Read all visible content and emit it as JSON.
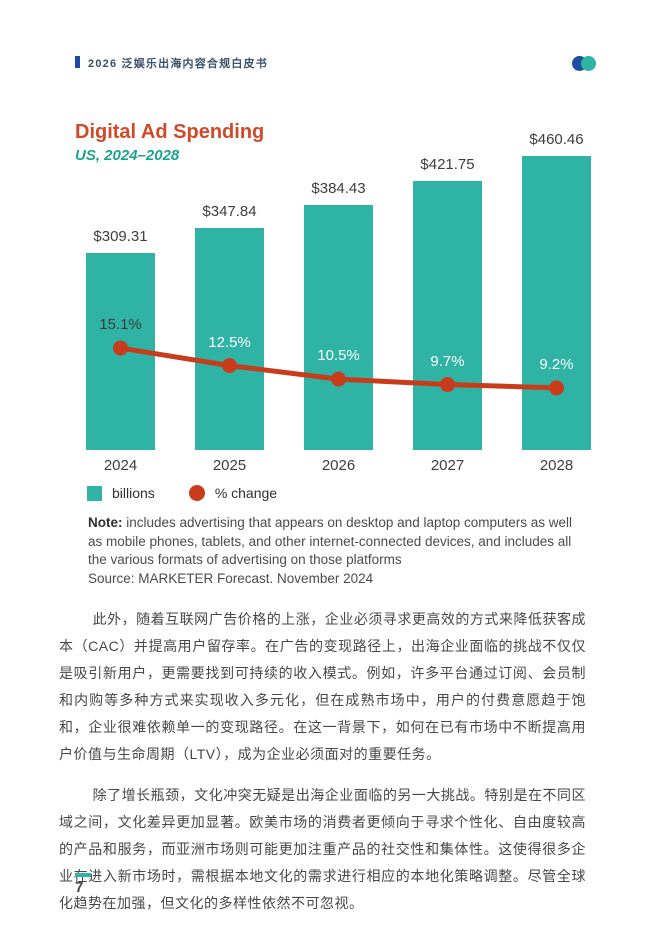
{
  "header": {
    "title": "2026 泛娱乐出海内容合规白皮书",
    "marker_color": "#1d49a7",
    "logo_colors": {
      "left": "#1d4f9e",
      "right": "#2eb3a4"
    }
  },
  "chart_data": {
    "type": "bar",
    "title": "Digital Ad Spending",
    "subtitle": "US, 2024–2028",
    "categories": [
      "2024",
      "2025",
      "2026",
      "2027",
      "2028"
    ],
    "series": [
      {
        "name": "billions",
        "type": "bar",
        "color": "#2eb3a4",
        "values": [
          309.31,
          347.84,
          384.43,
          421.75,
          460.46
        ],
        "labels": [
          "$309.31",
          "$347.84",
          "$384.43",
          "$421.75",
          "$460.46"
        ]
      },
      {
        "name": "% change",
        "type": "line",
        "color": "#c83c1c",
        "values": [
          15.1,
          12.5,
          10.5,
          9.7,
          9.2
        ],
        "labels": [
          "15.1%",
          "12.5%",
          "10.5%",
          "9.7%",
          "9.2%"
        ],
        "label_colors": [
          "#3b3b3b",
          "#ffffff",
          "#ffffff",
          "#ffffff",
          "#ffffff"
        ]
      }
    ],
    "ylim": [
      0,
      475
    ],
    "grid": false,
    "legend_position": "bottom-left"
  },
  "legend": [
    {
      "label": "billions"
    },
    {
      "label": "% change"
    }
  ],
  "note": {
    "label": "Note:",
    "text": " includes advertising that appears on desktop and laptop computers as well as mobile phones, tablets, and other internet-connected devices, and includes all the various formats of advertising on those platforms",
    "source": "Source: MARKETER Forecast. November 2024"
  },
  "body": {
    "paragraphs": [
      "此外，随着互联网广告价格的上涨，企业必须寻求更高效的方式来降低获客成本（CAC）并提高用户留存率。在广告的变现路径上，出海企业面临的挑战不仅仅是吸引新用户，更需要找到可持续的收入模式。例如，许多平台通过订阅、会员制和内购等多种方式来实现收入多元化，但在成熟市场中，用户的付费意愿趋于饱和，企业很难依赖单一的变现路径。在这一背景下，如何在已有市场中不断提高用户价值与生命周期（LTV），成为企业必须面对的重要任务。",
      "除了增长瓶颈，文化冲突无疑是出海企业面临的另一大挑战。特别是在不同区域之间，文化差异更加显著。欧美市场的消费者更倾向于寻求个性化、自由度较高的产品和服务，而亚洲市场则可能更加注重产品的社交性和集体性。这使得很多企业在进入新市场时，需根据本地文化的需求进行相应的本地化策略调整。尽管全球化趋势在加强，但文化的多样性依然不可忽视。"
    ]
  },
  "footer": {
    "page_number": "7",
    "bar_color": "#2eb3a4"
  }
}
